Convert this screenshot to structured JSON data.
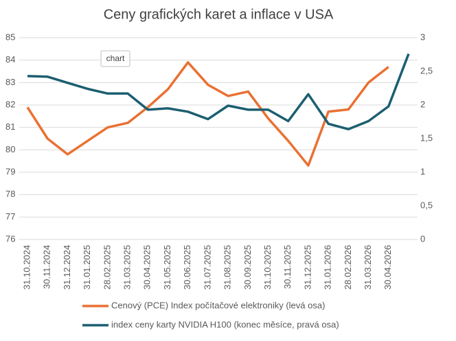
{
  "chart_data": {
    "type": "line",
    "title": "Ceny grafických karet a inflace v USA",
    "categories": [
      "31.10.2024",
      "30.11.2024",
      "31.12.2024",
      "31.01.2025",
      "28.02.2025",
      "31.03.2025",
      "30.04.2025",
      "31.05.2025",
      "30.06.2025",
      "31.07.2025",
      "31.08.2025",
      "30.09.2025",
      "31.10.2025",
      "30.11.2025",
      "31.12.2025",
      "31.01.2026",
      "28.02.2026",
      "31.03.2026",
      "30.04.2026",
      null
    ],
    "series": [
      {
        "name": "Cenový (PCE) Index počítačové elektroniky (levá osa)",
        "color": "#e97132",
        "values": [
          81.9,
          80.5,
          79.8,
          80.4,
          81.0,
          81.2,
          81.9,
          82.7,
          83.9,
          82.9,
          82.4,
          82.6,
          81.4,
          80.4,
          79.3,
          81.7,
          81.8,
          83.0,
          83.7,
          null
        ]
      },
      {
        "name": "index ceny karty NVIDIA H100 (konec měsíce, pravá osa)",
        "color": "#1b5e70",
        "axis": "y2",
        "values": [
          2.43,
          2.42,
          2.33,
          2.24,
          2.17,
          2.17,
          1.93,
          1.95,
          1.9,
          1.79,
          1.99,
          1.93,
          1.93,
          1.76,
          2.16,
          1.72,
          1.64,
          1.76,
          1.98,
          2.76
        ]
      }
    ],
    "ylim": [
      76,
      85
    ],
    "yticks": [
      76,
      77,
      78,
      79,
      80,
      81,
      82,
      83,
      84,
      85
    ],
    "y2lim": [
      0,
      3
    ],
    "y2ticks": [
      0,
      {
        "value": 0.5,
        "label": "0,5"
      },
      1,
      {
        "value": 1.5,
        "label": "1,5"
      },
      2,
      {
        "value": 2.5,
        "label": "2,5"
      },
      3
    ],
    "grid": true,
    "legend": "bottom",
    "annotations": [
      "chart"
    ]
  }
}
